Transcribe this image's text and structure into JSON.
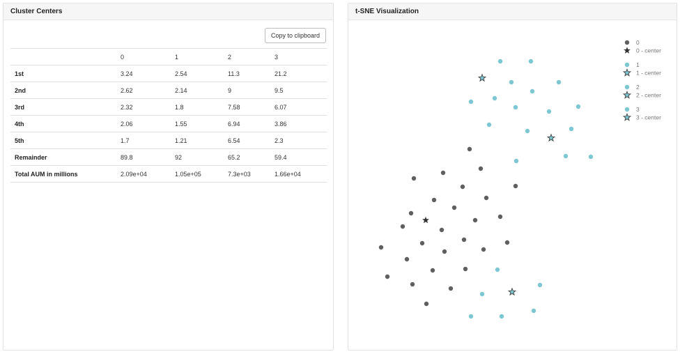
{
  "left_panel": {
    "title": "Cluster Centers",
    "copy_button_label": "Copy to clipboard",
    "table": {
      "columns": [
        "",
        "0",
        "1",
        "2",
        "3"
      ],
      "rows": [
        {
          "label": "1st",
          "values": [
            "3.24",
            "2.54",
            "11.3",
            "21.2"
          ]
        },
        {
          "label": "2nd",
          "values": [
            "2.62",
            "2.14",
            "9",
            "9.5"
          ]
        },
        {
          "label": "3rd",
          "values": [
            "2.32",
            "1.8",
            "7.58",
            "6.07"
          ]
        },
        {
          "label": "4th",
          "values": [
            "2.06",
            "1.55",
            "6.94",
            "3.86"
          ]
        },
        {
          "label": "5th",
          "values": [
            "1.7",
            "1.21",
            "6.54",
            "2.3"
          ]
        },
        {
          "label": "Remainder",
          "values": [
            "89.8",
            "92",
            "65.2",
            "59.4"
          ]
        },
        {
          "label": "Total AUM in millions",
          "values": [
            "2.09e+04",
            "1.05e+05",
            "7.3e+03",
            "1.66e+04"
          ]
        }
      ]
    }
  },
  "right_panel": {
    "title": "t-SNE Visualization"
  },
  "chart_data": {
    "type": "scatter",
    "axes_visible": false,
    "grid": false,
    "legend_position": "top-right",
    "legend": [
      {
        "label": "0",
        "marker": "circle",
        "color": "#5f5f5f"
      },
      {
        "label": "0 - center",
        "marker": "star",
        "color": "#333333"
      },
      {
        "label": "1",
        "marker": "circle",
        "color": "#7cc7d2"
      },
      {
        "label": "1 - center",
        "marker": "star",
        "color": "#7cc7d2"
      },
      {
        "label": "2",
        "marker": "circle",
        "color": "#7cc7d2"
      },
      {
        "label": "2 - center",
        "marker": "star",
        "color": "#7cc7d2"
      },
      {
        "label": "3",
        "marker": "circle",
        "color": "#7cc7d2"
      },
      {
        "label": "3 - center",
        "marker": "star",
        "color": "#7cc7d2"
      }
    ],
    "series": [
      {
        "cluster": "0",
        "color": "#5f5f5f",
        "points": [
          [
            174,
            184
          ],
          [
            190,
            212
          ],
          [
            136,
            218
          ],
          [
            94,
            226
          ],
          [
            164,
            238
          ],
          [
            240,
            237
          ],
          [
            198,
            254
          ],
          [
            123,
            257
          ],
          [
            90,
            276
          ],
          [
            152,
            268
          ],
          [
            182,
            286
          ],
          [
            218,
            281
          ],
          [
            78,
            295
          ],
          [
            134,
            300
          ],
          [
            106,
            319
          ],
          [
            166,
            314
          ],
          [
            228,
            318
          ],
          [
            47,
            325
          ],
          [
            138,
            331
          ],
          [
            194,
            328
          ],
          [
            84,
            342
          ],
          [
            121,
            358
          ],
          [
            168,
            356
          ],
          [
            56,
            367
          ],
          [
            92,
            378
          ],
          [
            147,
            384
          ],
          [
            112,
            406
          ]
        ]
      },
      {
        "cluster": "1-3",
        "color": "#7cc7d2",
        "points": [
          [
            218,
            58
          ],
          [
            262,
            58
          ],
          [
            234,
            88
          ],
          [
            302,
            88
          ],
          [
            264,
            101
          ],
          [
            210,
            111
          ],
          [
            176,
            116
          ],
          [
            330,
            123
          ],
          [
            240,
            124
          ],
          [
            288,
            130
          ],
          [
            202,
            149
          ],
          [
            320,
            155
          ],
          [
            257,
            158
          ],
          [
            312,
            194
          ],
          [
            348,
            195
          ],
          [
            241,
            201
          ],
          [
            214,
            357
          ],
          [
            275,
            379
          ],
          [
            192,
            392
          ],
          [
            266,
            416
          ],
          [
            176,
            424
          ],
          [
            220,
            424
          ]
        ]
      }
    ],
    "centers": [
      {
        "cluster": "0",
        "color": "#333333",
        "point": [
          111,
          286
        ]
      },
      {
        "cluster": "1",
        "color": "#7cc7d2",
        "point": [
          192,
          82
        ]
      },
      {
        "cluster": "2",
        "color": "#7cc7d2",
        "point": [
          291,
          168
        ]
      },
      {
        "cluster": "3",
        "color": "#7cc7d2",
        "point": [
          235,
          389
        ]
      }
    ]
  }
}
